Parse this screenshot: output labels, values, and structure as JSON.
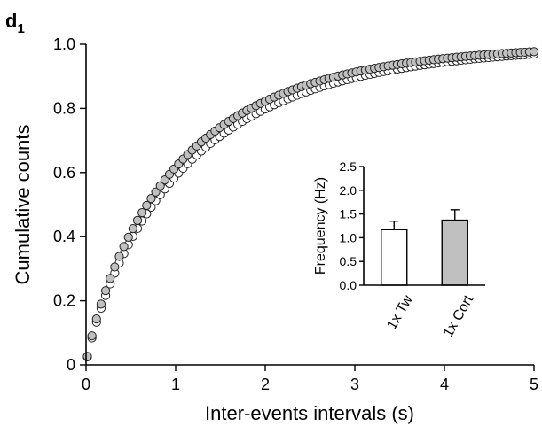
{
  "panel": {
    "letter": "d",
    "subscript": "1"
  },
  "chart_data": [
    {
      "type": "scatter",
      "title": "",
      "xlabel": "Inter-events intervals (s)",
      "ylabel": "Cumulative counts",
      "xlim": [
        0,
        5
      ],
      "ylim": [
        0,
        1.0
      ],
      "xticks": [
        "0",
        "1",
        "2",
        "3",
        "4",
        "5"
      ],
      "yticks": [
        "0",
        "0.2",
        "0.4",
        "0.6",
        "0.8",
        "1.0"
      ],
      "grid": false,
      "legend": "none",
      "series": [
        {
          "color": "#ffffff",
          "tau": 1.15,
          "n_points": 99
        },
        {
          "color": "#c0c0c0",
          "tau": 1.05,
          "n_points": 99
        }
      ]
    },
    {
      "type": "bar",
      "title": "",
      "xlabel": "",
      "ylabel": "Frequency (Hz)",
      "ylim": [
        0,
        2.5
      ],
      "yticks": [
        "0.0",
        "0.5",
        "1.0",
        "1.5",
        "2.0",
        "2.5"
      ],
      "categories": [
        "1x Tw",
        "1x Cort"
      ],
      "values": [
        1.17,
        1.37
      ],
      "errors": [
        0.18,
        0.22
      ],
      "colors": [
        "#ffffff",
        "#c0c0c0"
      ],
      "grid": false,
      "legend": "none"
    }
  ]
}
